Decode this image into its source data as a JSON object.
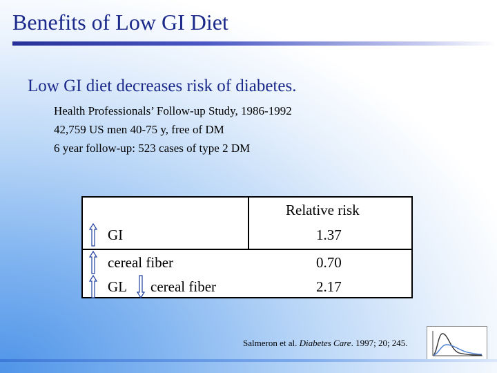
{
  "slide": {
    "title": "Benefits of Low GI Diet",
    "headline": "Low GI diet decreases risk of diabetes.",
    "details": [
      "Health Professionals’ Follow-up Study, 1986-1992",
      "42,759 US men 40-75 y, free of DM",
      "6 year follow-up: 523 cases of type 2 DM"
    ]
  },
  "table": {
    "header": "Relative risk",
    "rows": [
      {
        "label": "GI",
        "arrow": "up-arrow",
        "value": "1.37"
      },
      {
        "label": "cereal fiber",
        "arrow": "up-arrow",
        "value": "0.70"
      },
      {
        "label": "GL",
        "arrow": "up-arrow",
        "label2": "cereal fiber",
        "arrow2": "down-arrow",
        "value": "2.17"
      }
    ]
  },
  "citation": {
    "authors": "Salmeron et al.",
    "journal": "Diabetes Care",
    "rest": "1997; 20; 245."
  },
  "colors": {
    "title": "#1b2a8a",
    "accent": "#27309a",
    "arrow_fill": "#ffffff",
    "arrow_stroke": "#1f3f9e"
  }
}
